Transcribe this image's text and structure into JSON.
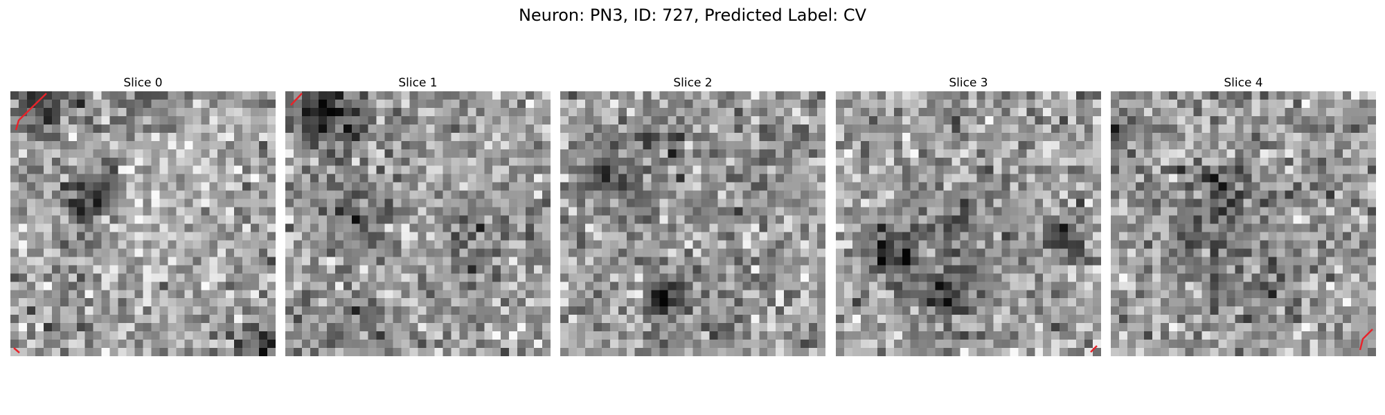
{
  "figure": {
    "title": "Neuron: PN3, ID: 727, Predicted Label: CV",
    "colormap": "grayscale",
    "contour_color": "#e8232a",
    "grid_size": 32
  },
  "slices": [
    {
      "title": "Slice 0",
      "seed": 11,
      "blobs": [
        [
          0.3,
          0.4,
          0.09,
          0.45
        ],
        [
          0.12,
          0.05,
          0.12,
          0.35
        ],
        [
          0.5,
          0.02,
          0.1,
          0.25
        ],
        [
          0.95,
          0.95,
          0.08,
          0.35
        ]
      ],
      "bright": [
        [
          0.55,
          0.4,
          0.25,
          -0.12
        ]
      ]
    },
    {
      "title": "Slice 1",
      "seed": 23,
      "blobs": [
        [
          0.15,
          0.08,
          0.14,
          0.4
        ],
        [
          0.3,
          0.45,
          0.12,
          0.22
        ],
        [
          0.7,
          0.55,
          0.12,
          0.2
        ],
        [
          0.3,
          0.85,
          0.1,
          0.15
        ]
      ],
      "bright": []
    },
    {
      "title": "Slice 2",
      "seed": 37,
      "blobs": [
        [
          0.4,
          0.78,
          0.07,
          0.55
        ],
        [
          0.2,
          0.3,
          0.15,
          0.22
        ],
        [
          0.4,
          0.2,
          0.1,
          0.2
        ],
        [
          0.75,
          0.25,
          0.12,
          0.15
        ]
      ],
      "bright": []
    },
    {
      "title": "Slice 3",
      "seed": 51,
      "blobs": [
        [
          0.22,
          0.62,
          0.1,
          0.4
        ],
        [
          0.4,
          0.78,
          0.1,
          0.3
        ],
        [
          0.85,
          0.57,
          0.08,
          0.4
        ],
        [
          0.45,
          0.55,
          0.18,
          0.15
        ]
      ],
      "bright": []
    },
    {
      "title": "Slice 4",
      "seed": 67,
      "blobs": [
        [
          0.02,
          0.17,
          0.05,
          0.45
        ],
        [
          0.38,
          0.55,
          0.15,
          0.25
        ],
        [
          0.4,
          0.35,
          0.1,
          0.2
        ],
        [
          0.6,
          0.75,
          0.12,
          0.15
        ]
      ],
      "bright": []
    }
  ]
}
